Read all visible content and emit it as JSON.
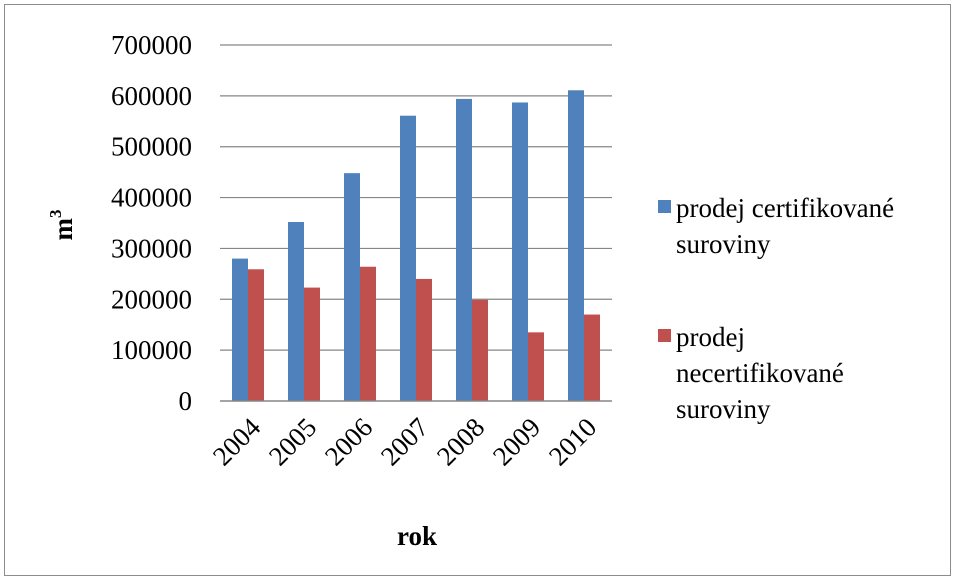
{
  "chart_data": {
    "type": "bar",
    "categories": [
      "2004",
      "2005",
      "2006",
      "2007",
      "2008",
      "2009",
      "2010"
    ],
    "series": [
      {
        "name": "prodej certifikované suroviny",
        "legend_lines": [
          "prodej certifikované",
          "suroviny"
        ],
        "color": "#4f81bd",
        "values": [
          280000,
          352000,
          448000,
          561000,
          594000,
          587000,
          611000
        ]
      },
      {
        "name": "prodej necertifikované suroviny",
        "legend_lines": [
          "prodej",
          "necertifikované",
          "suroviny"
        ],
        "color": "#c0504d",
        "values": [
          259000,
          223000,
          264000,
          240000,
          199000,
          135000,
          170000
        ]
      }
    ],
    "xlabel": "rok",
    "ylabel": "m",
    "ylabel_sup": "3",
    "ylim": [
      0,
      700000
    ],
    "yticks": [
      "0",
      "100000",
      "200000",
      "300000",
      "400000",
      "500000",
      "600000",
      "700000"
    ],
    "grid": true,
    "legend_position": "right"
  }
}
